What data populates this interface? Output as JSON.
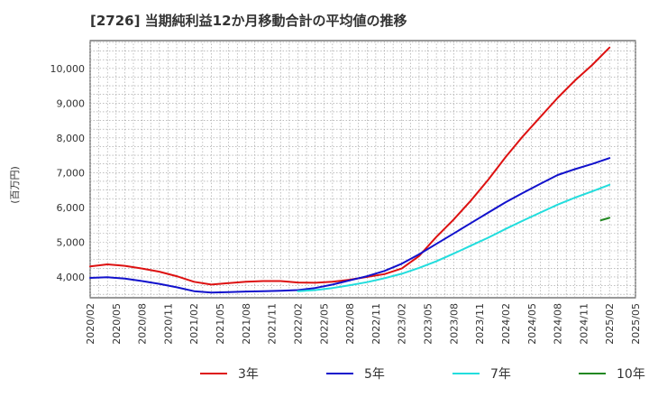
{
  "chart_data": {
    "type": "line",
    "title": "[2726]  当期純利益12か月移動合計の平均値の推移",
    "ylabel": "(百万円)",
    "xlabel": "",
    "grid": true,
    "legend_position": "bottom",
    "ylim": [
      3400,
      10800
    ],
    "yticks": [
      4000,
      5000,
      6000,
      7000,
      8000,
      9000,
      10000
    ],
    "ytick_labels": [
      "4,000",
      "5,000",
      "6,000",
      "7,000",
      "8,000",
      "9,000",
      "10,000"
    ],
    "xticks": [
      "2020/02",
      "2020/05",
      "2020/08",
      "2020/11",
      "2021/02",
      "2021/05",
      "2021/08",
      "2021/11",
      "2022/02",
      "2022/05",
      "2022/08",
      "2022/11",
      "2023/02",
      "2023/05",
      "2023/08",
      "2023/11",
      "2024/02",
      "2024/05",
      "2024/08",
      "2024/11",
      "2025/02",
      "2025/05"
    ],
    "series": [
      {
        "name": "3年",
        "color": "#dd1111",
        "points": [
          [
            "2020/02",
            4300
          ],
          [
            "2020/04",
            4360
          ],
          [
            "2020/06",
            4320
          ],
          [
            "2020/08",
            4240
          ],
          [
            "2020/10",
            4150
          ],
          [
            "2020/12",
            4020
          ],
          [
            "2021/02",
            3860
          ],
          [
            "2021/04",
            3780
          ],
          [
            "2021/06",
            3820
          ],
          [
            "2021/08",
            3860
          ],
          [
            "2021/10",
            3880
          ],
          [
            "2021/12",
            3880
          ],
          [
            "2022/02",
            3840
          ],
          [
            "2022/04",
            3830
          ],
          [
            "2022/06",
            3860
          ],
          [
            "2022/08",
            3920
          ],
          [
            "2022/10",
            4000
          ],
          [
            "2022/12",
            4080
          ],
          [
            "2023/02",
            4240
          ],
          [
            "2023/04",
            4600
          ],
          [
            "2023/06",
            5150
          ],
          [
            "2023/08",
            5650
          ],
          [
            "2023/10",
            6200
          ],
          [
            "2023/12",
            6800
          ],
          [
            "2024/02",
            7450
          ],
          [
            "2024/04",
            8050
          ],
          [
            "2024/06",
            8600
          ],
          [
            "2024/08",
            9150
          ],
          [
            "2024/10",
            9650
          ],
          [
            "2024/12",
            10100
          ],
          [
            "2025/02",
            10600
          ]
        ]
      },
      {
        "name": "5年",
        "color": "#1111cc",
        "points": [
          [
            "2020/02",
            3970
          ],
          [
            "2020/04",
            3990
          ],
          [
            "2020/06",
            3950
          ],
          [
            "2020/08",
            3880
          ],
          [
            "2020/10",
            3800
          ],
          [
            "2020/12",
            3700
          ],
          [
            "2021/02",
            3590
          ],
          [
            "2021/04",
            3550
          ],
          [
            "2021/06",
            3560
          ],
          [
            "2021/08",
            3580
          ],
          [
            "2021/10",
            3590
          ],
          [
            "2021/12",
            3600
          ],
          [
            "2022/02",
            3620
          ],
          [
            "2022/04",
            3680
          ],
          [
            "2022/06",
            3780
          ],
          [
            "2022/08",
            3900
          ],
          [
            "2022/10",
            4020
          ],
          [
            "2022/12",
            4170
          ],
          [
            "2023/02",
            4380
          ],
          [
            "2023/04",
            4650
          ],
          [
            "2023/06",
            4950
          ],
          [
            "2023/08",
            5250
          ],
          [
            "2023/10",
            5550
          ],
          [
            "2023/12",
            5850
          ],
          [
            "2024/02",
            6150
          ],
          [
            "2024/04",
            6420
          ],
          [
            "2024/06",
            6680
          ],
          [
            "2024/08",
            6930
          ],
          [
            "2024/10",
            7100
          ],
          [
            "2024/12",
            7250
          ],
          [
            "2025/02",
            7420
          ]
        ]
      },
      {
        "name": "7年",
        "color": "#22dddd",
        "points": [
          [
            "2022/02",
            3590
          ],
          [
            "2022/04",
            3620
          ],
          [
            "2022/06",
            3680
          ],
          [
            "2022/08",
            3760
          ],
          [
            "2022/10",
            3850
          ],
          [
            "2022/12",
            3960
          ],
          [
            "2023/02",
            4090
          ],
          [
            "2023/04",
            4260
          ],
          [
            "2023/06",
            4450
          ],
          [
            "2023/08",
            4670
          ],
          [
            "2023/10",
            4900
          ],
          [
            "2023/12",
            5130
          ],
          [
            "2024/02",
            5380
          ],
          [
            "2024/04",
            5620
          ],
          [
            "2024/06",
            5850
          ],
          [
            "2024/08",
            6080
          ],
          [
            "2024/10",
            6280
          ],
          [
            "2024/12",
            6460
          ],
          [
            "2025/02",
            6650
          ]
        ]
      },
      {
        "name": "10年",
        "color": "#228822",
        "points": [
          [
            "2025/01",
            5630
          ],
          [
            "2025/02",
            5700
          ]
        ]
      }
    ]
  }
}
